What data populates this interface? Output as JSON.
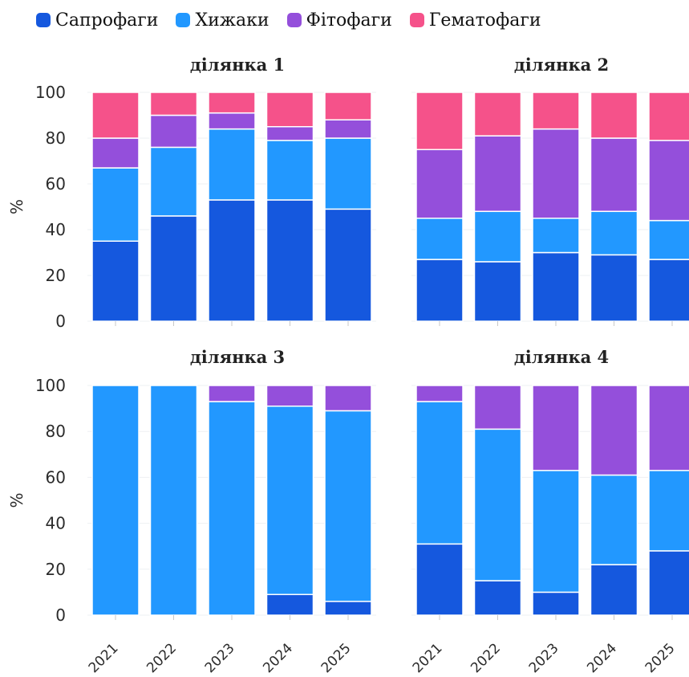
{
  "legend": [
    {
      "label": "Сапрофаги",
      "color": "#1558DE"
    },
    {
      "label": "Хижаки",
      "color": "#2298FF"
    },
    {
      "label": "Фітофаги",
      "color": "#944FDB"
    },
    {
      "label": "Гематофаги",
      "color": "#F5528A"
    }
  ],
  "chart_data": [
    {
      "type": "bar",
      "stacked": true,
      "title": "ділянка 1",
      "categories": [
        "2021",
        "2022",
        "2023",
        "2024",
        "2025"
      ],
      "ylabel": "%",
      "ylim": [
        0,
        100
      ],
      "yticks": [
        0,
        20,
        40,
        60,
        80,
        100
      ],
      "series": [
        {
          "name": "Сапрофаги",
          "values": [
            35,
            46,
            53,
            53,
            49
          ]
        },
        {
          "name": "Хижаки",
          "values": [
            32,
            30,
            31,
            26,
            31
          ]
        },
        {
          "name": "Фітофаги",
          "values": [
            13,
            14,
            7,
            6,
            8
          ]
        },
        {
          "name": "Гематофаги",
          "values": [
            20,
            10,
            9,
            15,
            12
          ]
        }
      ]
    },
    {
      "type": "bar",
      "stacked": true,
      "title": "ділянка 2",
      "categories": [
        "2021",
        "2022",
        "2023",
        "2024",
        "2025"
      ],
      "ylabel": "",
      "ylim": [
        0,
        100
      ],
      "series": [
        {
          "name": "Сапрофаги",
          "values": [
            27,
            26,
            30,
            29,
            27
          ]
        },
        {
          "name": "Хижаки",
          "values": [
            18,
            22,
            15,
            19,
            17
          ]
        },
        {
          "name": "Фітофаги",
          "values": [
            30,
            33,
            39,
            32,
            35
          ]
        },
        {
          "name": "Гематофаги",
          "values": [
            25,
            19,
            16,
            20,
            21
          ]
        }
      ]
    },
    {
      "type": "bar",
      "stacked": true,
      "title": "ділянка 3",
      "categories": [
        "2021",
        "2022",
        "2023",
        "2024",
        "2025"
      ],
      "ylabel": "%",
      "ylim": [
        0,
        100
      ],
      "yticks": [
        0,
        20,
        40,
        60,
        80,
        100
      ],
      "series": [
        {
          "name": "Сапрофаги",
          "values": [
            0,
            0,
            0,
            9,
            6
          ]
        },
        {
          "name": "Хижаки",
          "values": [
            100,
            100,
            93,
            82,
            83
          ]
        },
        {
          "name": "Фітофаги",
          "values": [
            0,
            0,
            7,
            9,
            11
          ]
        },
        {
          "name": "Гематофаги",
          "values": [
            0,
            0,
            0,
            0,
            0
          ]
        }
      ]
    },
    {
      "type": "bar",
      "stacked": true,
      "title": "ділянка 4",
      "categories": [
        "2021",
        "2022",
        "2023",
        "2024",
        "2025"
      ],
      "ylabel": "",
      "ylim": [
        0,
        100
      ],
      "series": [
        {
          "name": "Сапрофаги",
          "values": [
            31,
            15,
            10,
            22,
            28
          ]
        },
        {
          "name": "Хижаки",
          "values": [
            62,
            66,
            53,
            39,
            35
          ]
        },
        {
          "name": "Фітофаги",
          "values": [
            7,
            19,
            37,
            39,
            37
          ]
        },
        {
          "name": "Гематофаги",
          "values": [
            0,
            0,
            0,
            0,
            0
          ]
        }
      ]
    }
  ]
}
